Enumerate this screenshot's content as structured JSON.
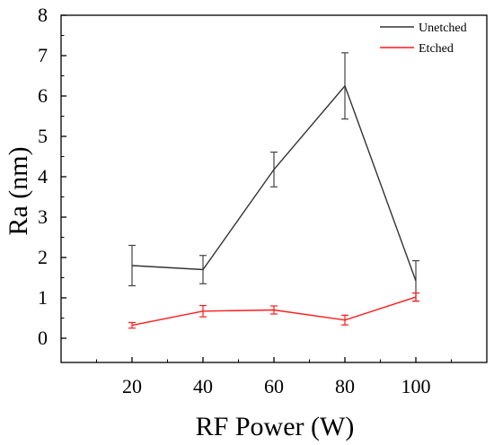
{
  "chart_data": {
    "type": "line",
    "title": "",
    "xlabel": "RF Power (W)",
    "ylabel": "Ra (nm)",
    "x": [
      20,
      40,
      60,
      80,
      100
    ],
    "xticks": [
      "20",
      "40",
      "60",
      "80",
      "100"
    ],
    "xlim": [
      0,
      120
    ],
    "yticks": [
      "0",
      "1",
      "2",
      "3",
      "4",
      "5",
      "6",
      "7",
      "8"
    ],
    "ylim": [
      -0.6,
      8
    ],
    "grid": false,
    "legend_position": "top-right",
    "series": [
      {
        "name": "Unetched",
        "color": "#333333",
        "values": [
          1.8,
          1.7,
          4.18,
          6.25,
          1.42
        ],
        "error": [
          0.5,
          0.35,
          0.43,
          0.82,
          0.5
        ]
      },
      {
        "name": "Etched",
        "color": "#ff1a1a",
        "values": [
          0.32,
          0.67,
          0.7,
          0.45,
          1.02
        ],
        "error": [
          0.07,
          0.14,
          0.1,
          0.12,
          0.1
        ]
      }
    ]
  }
}
